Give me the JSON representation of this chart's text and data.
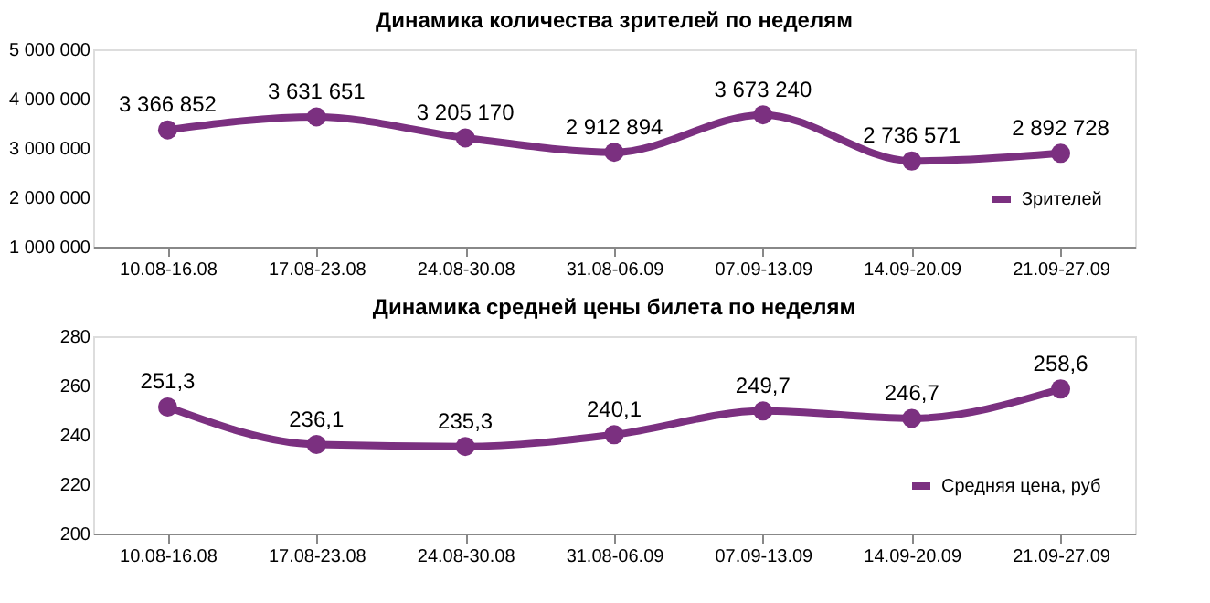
{
  "chart_data": [
    {
      "type": "line",
      "title": "Динамика количества зрителей по неделям",
      "categories": [
        "10.08-16.08",
        "17.08-23.08",
        "24.08-30.08",
        "31.08-06.09",
        "07.09-13.09",
        "14.09-20.09",
        "21.09-27.09"
      ],
      "series": [
        {
          "name": "Зрителей",
          "color": "#7b3080",
          "values": [
            3366852,
            3631651,
            3205170,
            2912894,
            3673240,
            2736571,
            2892728
          ],
          "value_labels": [
            "3 366 852",
            "3 631 651",
            "3 205 170",
            "2 912 894",
            "3 673 240",
            "2 736 571",
            "2 892 728"
          ]
        }
      ],
      "ylim": [
        1000000,
        5000000
      ],
      "yticks": [
        {
          "value": 1000000,
          "label": "1 000 000"
        },
        {
          "value": 2000000,
          "label": "2 000 000"
        },
        {
          "value": 3000000,
          "label": "3 000 000"
        },
        {
          "value": 4000000,
          "label": "4 000 000"
        },
        {
          "value": 5000000,
          "label": "5 000 000"
        }
      ],
      "legend": "bottom right",
      "marker": "circle"
    },
    {
      "type": "line",
      "title": "Динамика средней цены билета по неделям",
      "categories": [
        "10.08-16.08",
        "17.08-23.08",
        "24.08-30.08",
        "31.08-06.09",
        "07.09-13.09",
        "14.09-20.09",
        "21.09-27.09"
      ],
      "series": [
        {
          "name": "Средняя цена, руб",
          "color": "#7b3080",
          "values": [
            251.3,
            236.1,
            235.3,
            240.1,
            249.7,
            246.7,
            258.6
          ],
          "value_labels": [
            "251,3",
            "236,1",
            "235,3",
            "240,1",
            "249,7",
            "246,7",
            "258,6"
          ]
        }
      ],
      "ylim": [
        200,
        280
      ],
      "yticks": [
        200,
        220,
        240,
        260,
        280
      ],
      "legend": "bottom right",
      "marker": "circle"
    }
  ]
}
